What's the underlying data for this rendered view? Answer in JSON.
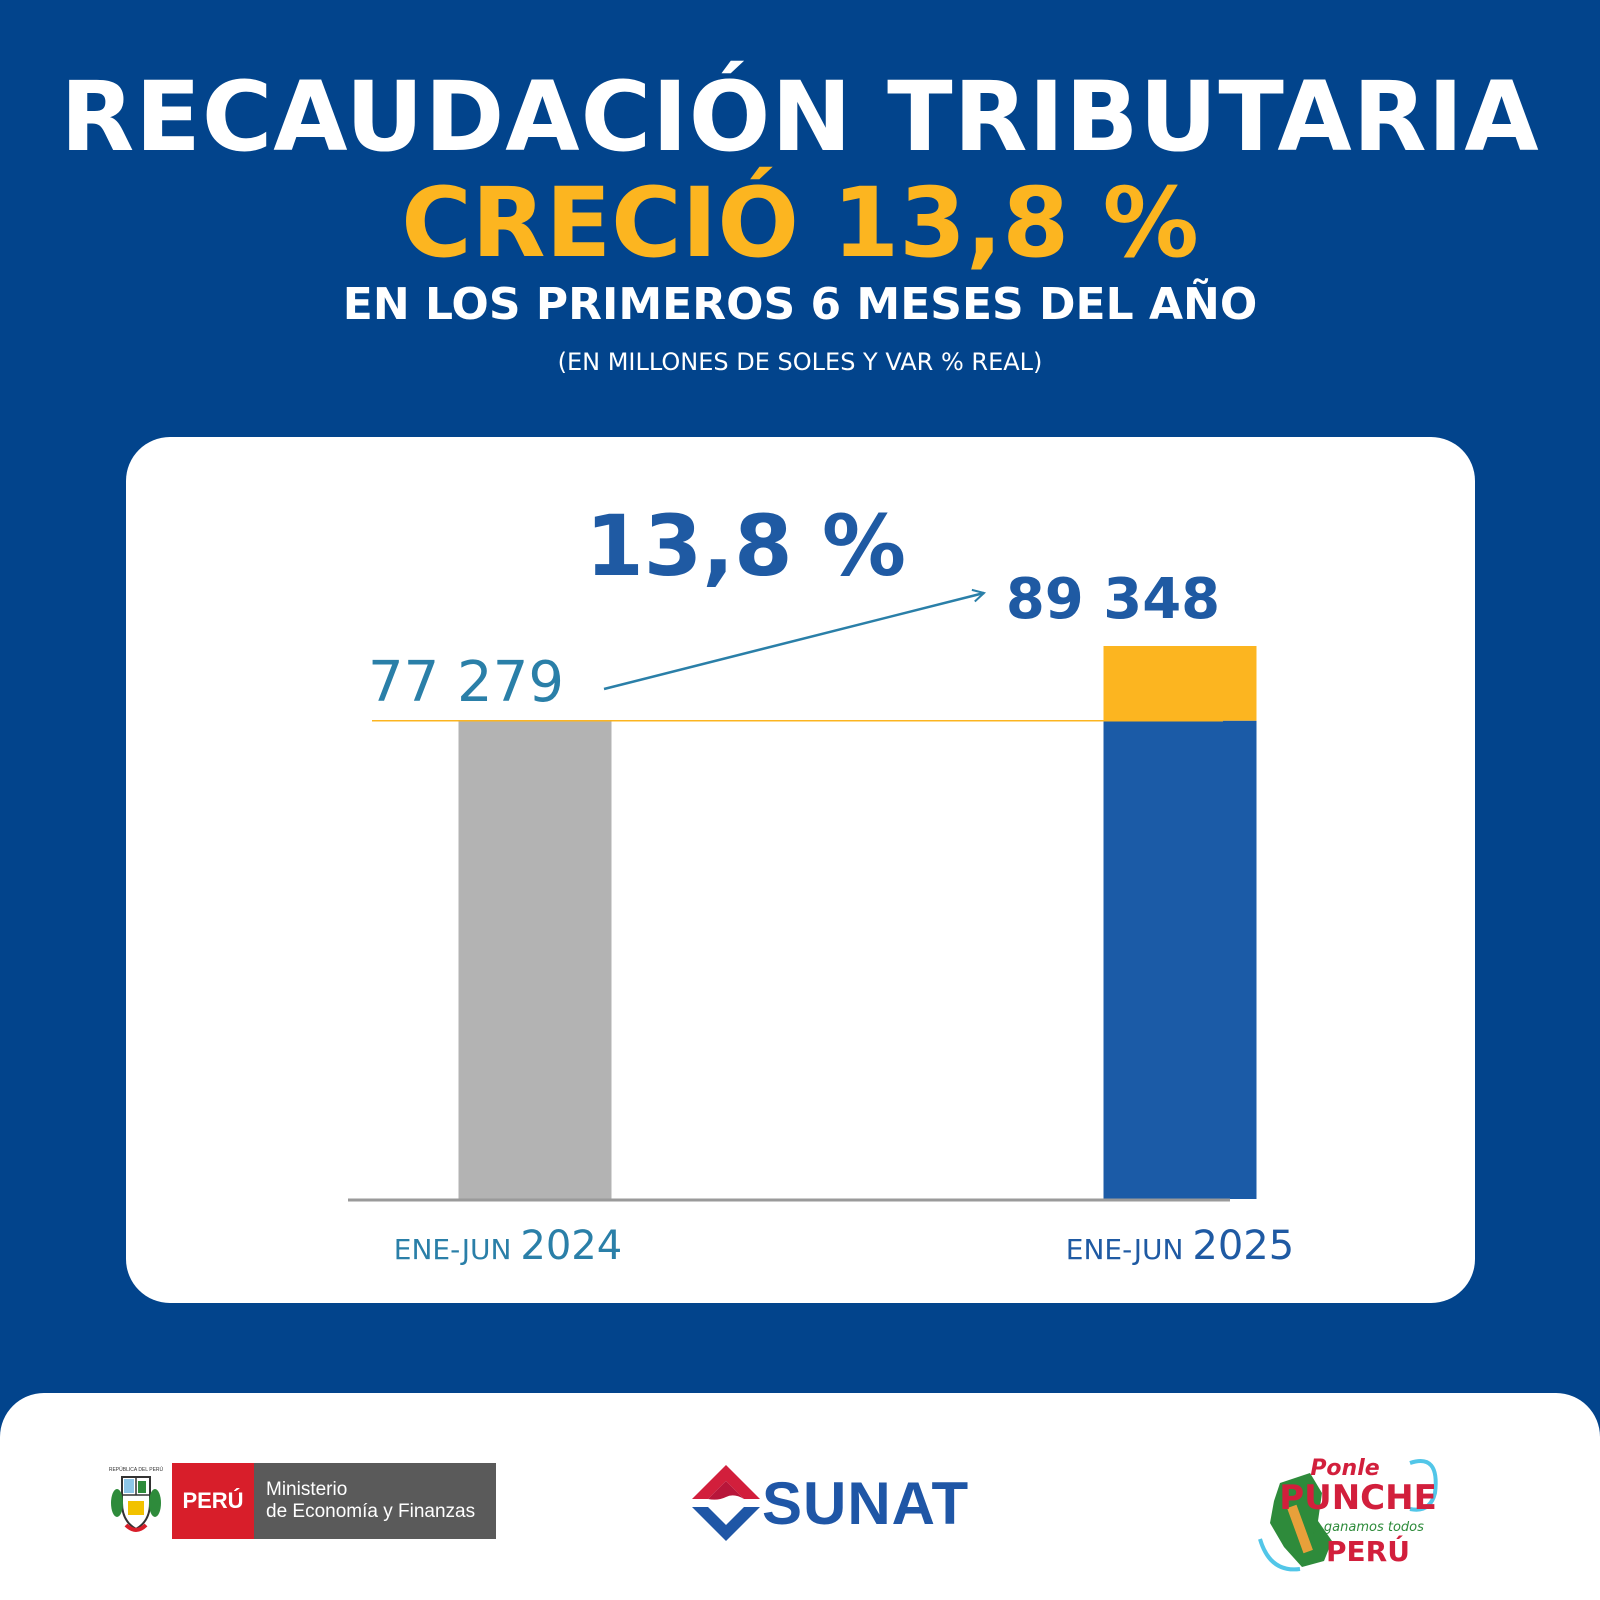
{
  "header": {
    "title_line1": "RECAUDACIÓN TRIBUTARIA",
    "title_line2": "CRECIÓ 13,8 %",
    "title_line3": "EN LOS PRIMEROS 6 MESES DEL AÑO",
    "subtitle": "(EN MILLONES DE SOLES Y VAR % REAL)"
  },
  "chart_data": {
    "type": "bar",
    "categories": [
      {
        "prefix": "ENE-JUN",
        "year": "2024"
      },
      {
        "prefix": "ENE-JUN",
        "year": "2025"
      }
    ],
    "values": [
      77279,
      89348
    ],
    "value_labels": [
      "77 279",
      "89 348"
    ],
    "growth_label": "13,8 %",
    "increase_segment": {
      "from": 77279,
      "to": 89348
    },
    "ylim": [
      0,
      89348
    ],
    "colors": {
      "bar_2024": "#b3b3b3",
      "bar_2025": "#1b5ba7",
      "increase": "#fcb520",
      "reference_line": "#fcb520",
      "label_2024": "#2a7fa8",
      "label_2025": "#1f5aa3",
      "growth": "#1f5aa3",
      "arrow": "#2a7fa8",
      "axis": "#9a9a9a"
    }
  },
  "footer": {
    "mef": {
      "peru": "PERÚ",
      "line1": "Ministerio",
      "line2": "de Economía y Finanzas",
      "shield_text": "REPÚBLICA DEL PERÚ"
    },
    "sunat": {
      "name": "SUNAT"
    },
    "ponle": {
      "line1": "Ponle",
      "line2": "PUNCHE",
      "line3": "y ganamos todos",
      "line4": "PERÚ"
    }
  },
  "colors": {
    "background": "#02448c",
    "accent": "#fcb520"
  }
}
